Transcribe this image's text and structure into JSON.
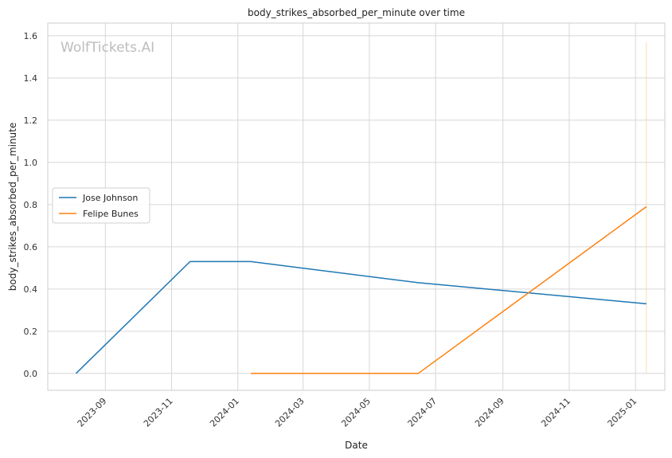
{
  "chart_data": {
    "type": "line",
    "title": "body_strikes_absorbed_per_minute over time",
    "xlabel": "Date",
    "ylabel": "body_strikes_absorbed_per_minute",
    "watermark": "WolfTickets.AI",
    "xlim": [
      "2023-07-10",
      "2025-01-28"
    ],
    "ylim": [
      -0.08,
      1.66
    ],
    "x_ticks": [
      "2023-09",
      "2023-11",
      "2024-01",
      "2024-03",
      "2024-05",
      "2024-07",
      "2024-09",
      "2024-11",
      "2025-01"
    ],
    "y_ticks": [
      "0.0",
      "0.2",
      "0.4",
      "0.6",
      "0.8",
      "1.0",
      "1.2",
      "1.4",
      "1.6"
    ],
    "grid": true,
    "legend_position": "center-left",
    "series": [
      {
        "name": "Jose Johnson",
        "color": "#1f77b4",
        "points": [
          {
            "x": "2023-08-05",
            "y": 0.0
          },
          {
            "x": "2023-11-18",
            "y": 0.53
          },
          {
            "x": "2024-01-13",
            "y": 0.53
          },
          {
            "x": "2024-06-15",
            "y": 0.43
          },
          {
            "x": "2025-01-11",
            "y": 0.33
          }
        ]
      },
      {
        "name": "Felipe Bunes",
        "color": "#ff7f0e",
        "points": [
          {
            "x": "2024-01-13",
            "y": 0.0
          },
          {
            "x": "2024-06-15",
            "y": 0.0
          },
          {
            "x": "2025-01-11",
            "y": 0.79
          }
        ]
      }
    ],
    "annotation_line": {
      "x": "2025-01-11",
      "y_from": 0.0,
      "y_to": 1.57,
      "color": "#f5deb3"
    }
  }
}
